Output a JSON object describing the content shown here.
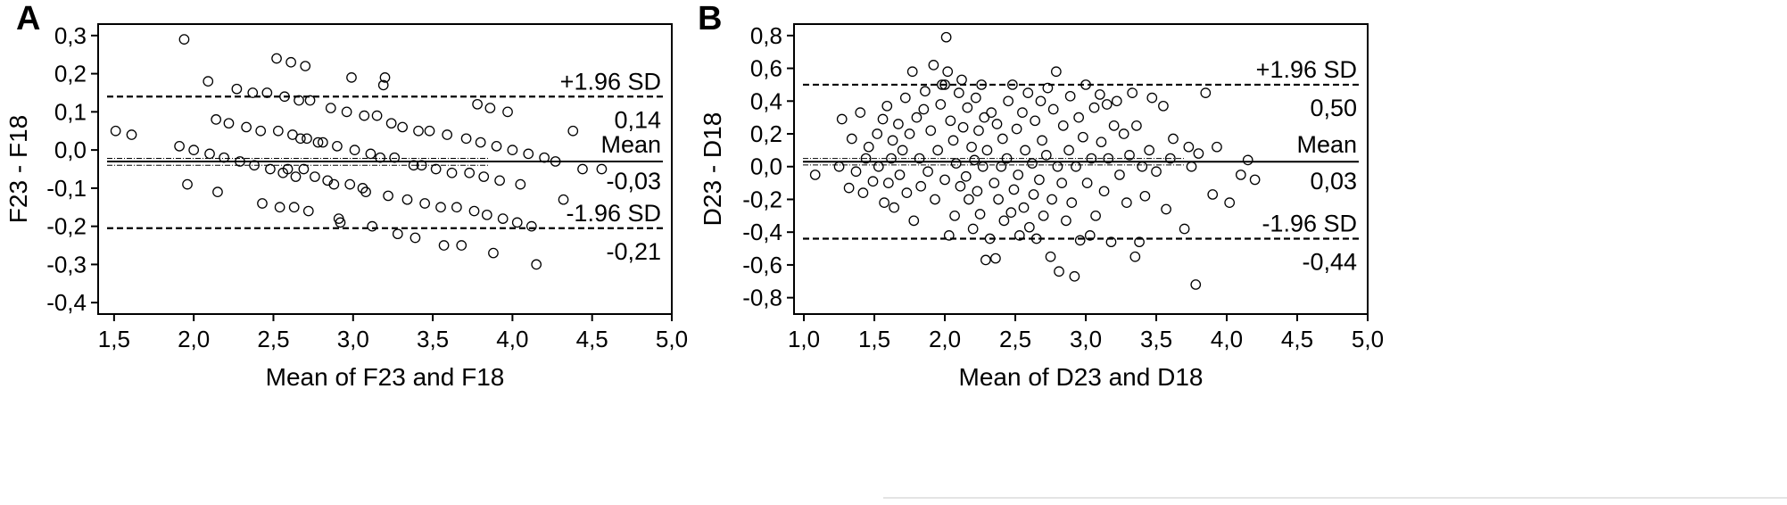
{
  "chart_data": [
    {
      "type": "scatter",
      "panel_label": "A",
      "title": "",
      "xlabel": "Mean of F23 and F18",
      "ylabel": "F23 - F18",
      "xlim": [
        1.4,
        5.0
      ],
      "ylim": [
        -0.43,
        0.33
      ],
      "x_ticks": [
        1.5,
        2.0,
        2.5,
        3.0,
        3.5,
        4.0,
        4.5,
        5.0
      ],
      "x_tick_labels": [
        "1,5",
        "2,0",
        "2,5",
        "3,0",
        "3,5",
        "4,0",
        "4,5",
        "5,0"
      ],
      "y_ticks": [
        0.3,
        0.2,
        0.1,
        0.0,
        -0.1,
        -0.2,
        -0.3,
        -0.4
      ],
      "y_tick_labels": [
        "0,3",
        "0,2",
        "0,1",
        "0,0",
        "-0,1",
        "-0,2",
        "-0,3",
        "-0,4"
      ],
      "grid": false,
      "reference_lines": {
        "upper": {
          "value": 0.14,
          "name": "+1.96 SD",
          "value_label": "0,14",
          "style": "dashed"
        },
        "mean": {
          "value": -0.03,
          "name": "Mean",
          "value_label": "-0,03",
          "style": "solid",
          "ci_low": -0.04,
          "ci_high": -0.022
        },
        "lower": {
          "value": -0.205,
          "name": "-1.96 SD",
          "value_label": "-0,21",
          "style": "dashed"
        }
      },
      "points": [
        [
          1.51,
          0.05
        ],
        [
          1.61,
          0.04
        ],
        [
          1.91,
          0.01
        ],
        [
          1.94,
          0.29
        ],
        [
          1.96,
          -0.09
        ],
        [
          2.0,
          0.0
        ],
        [
          2.09,
          0.18
        ],
        [
          2.1,
          -0.01
        ],
        [
          2.14,
          0.08
        ],
        [
          2.15,
          -0.11
        ],
        [
          2.19,
          -0.02
        ],
        [
          2.22,
          0.07
        ],
        [
          2.27,
          0.16
        ],
        [
          2.29,
          -0.03
        ],
        [
          2.33,
          0.06
        ],
        [
          2.37,
          0.15
        ],
        [
          2.38,
          -0.04
        ],
        [
          2.42,
          0.05
        ],
        [
          2.43,
          -0.14
        ],
        [
          2.46,
          0.15
        ],
        [
          2.48,
          -0.05
        ],
        [
          2.52,
          0.24
        ],
        [
          2.53,
          0.05
        ],
        [
          2.54,
          -0.15
        ],
        [
          2.56,
          -0.06
        ],
        [
          2.57,
          0.14
        ],
        [
          2.59,
          -0.05
        ],
        [
          2.61,
          0.23
        ],
        [
          2.62,
          0.04
        ],
        [
          2.63,
          -0.15
        ],
        [
          2.64,
          -0.07
        ],
        [
          2.66,
          0.13
        ],
        [
          2.67,
          0.03
        ],
        [
          2.69,
          -0.05
        ],
        [
          2.7,
          0.22
        ],
        [
          2.71,
          0.03
        ],
        [
          2.72,
          -0.16
        ],
        [
          2.73,
          0.13
        ],
        [
          2.76,
          -0.07
        ],
        [
          2.78,
          0.02
        ],
        [
          2.81,
          0.02
        ],
        [
          2.84,
          -0.08
        ],
        [
          2.86,
          0.11
        ],
        [
          2.88,
          -0.09
        ],
        [
          2.9,
          0.01
        ],
        [
          2.91,
          -0.18
        ],
        [
          2.92,
          -0.19
        ],
        [
          2.96,
          0.1
        ],
        [
          2.98,
          -0.09
        ],
        [
          2.99,
          0.19
        ],
        [
          3.01,
          0.0
        ],
        [
          3.06,
          -0.1
        ],
        [
          3.07,
          0.09
        ],
        [
          3.08,
          -0.11
        ],
        [
          3.11,
          -0.01
        ],
        [
          3.12,
          -0.2
        ],
        [
          3.15,
          0.09
        ],
        [
          3.17,
          -0.02
        ],
        [
          3.19,
          0.17
        ],
        [
          3.2,
          0.19
        ],
        [
          3.22,
          -0.12
        ],
        [
          3.24,
          0.07
        ],
        [
          3.26,
          -0.02
        ],
        [
          3.28,
          -0.22
        ],
        [
          3.31,
          0.06
        ],
        [
          3.34,
          -0.13
        ],
        [
          3.38,
          -0.04
        ],
        [
          3.39,
          -0.23
        ],
        [
          3.41,
          0.05
        ],
        [
          3.43,
          -0.04
        ],
        [
          3.45,
          -0.14
        ],
        [
          3.48,
          0.05
        ],
        [
          3.52,
          -0.05
        ],
        [
          3.55,
          -0.15
        ],
        [
          3.57,
          -0.25
        ],
        [
          3.59,
          0.04
        ],
        [
          3.62,
          -0.06
        ],
        [
          3.65,
          -0.15
        ],
        [
          3.68,
          -0.25
        ],
        [
          3.71,
          0.03
        ],
        [
          3.73,
          -0.06
        ],
        [
          3.76,
          -0.16
        ],
        [
          3.78,
          0.12
        ],
        [
          3.8,
          0.02
        ],
        [
          3.82,
          -0.07
        ],
        [
          3.84,
          -0.17
        ],
        [
          3.86,
          0.11
        ],
        [
          3.88,
          -0.27
        ],
        [
          3.9,
          0.01
        ],
        [
          3.92,
          -0.08
        ],
        [
          3.94,
          -0.18
        ],
        [
          3.97,
          0.1
        ],
        [
          4.0,
          0.0
        ],
        [
          4.03,
          -0.19
        ],
        [
          4.05,
          -0.09
        ],
        [
          4.1,
          -0.01
        ],
        [
          4.12,
          -0.2
        ],
        [
          4.15,
          -0.3
        ],
        [
          4.2,
          -0.02
        ],
        [
          4.27,
          -0.03
        ],
        [
          4.32,
          -0.13
        ],
        [
          4.38,
          0.05
        ],
        [
          4.44,
          -0.05
        ],
        [
          4.56,
          -0.05
        ]
      ]
    },
    {
      "type": "scatter",
      "panel_label": "B",
      "title": "",
      "xlabel": "Mean of D23 and D18",
      "ylabel": "D23 - D18",
      "xlim": [
        0.93,
        5.0
      ],
      "ylim": [
        -0.9,
        0.87
      ],
      "x_ticks": [
        1.0,
        1.5,
        2.0,
        2.5,
        3.0,
        3.5,
        4.0,
        4.5,
        5.0
      ],
      "x_tick_labels": [
        "1,0",
        "1,5",
        "2,0",
        "2,5",
        "3,0",
        "3,5",
        "4,0",
        "4,5",
        "5,0"
      ],
      "y_ticks": [
        0.8,
        0.6,
        0.4,
        0.2,
        0.0,
        -0.2,
        -0.4,
        -0.6,
        -0.8
      ],
      "y_tick_labels": [
        "0,8",
        "0,6",
        "0,4",
        "0,2",
        "0,0",
        "-0,2",
        "-0,4",
        "-0,6",
        "-0,8"
      ],
      "grid": false,
      "reference_lines": {
        "upper": {
          "value": 0.5,
          "name": "+1.96 SD",
          "value_label": "0,50",
          "style": "dashed"
        },
        "mean": {
          "value": 0.03,
          "name": "Mean",
          "value_label": "0,03",
          "style": "solid",
          "ci_low": 0.01,
          "ci_high": 0.05
        },
        "lower": {
          "value": -0.44,
          "name": "-1.96 SD",
          "value_label": "-0,44",
          "style": "dashed"
        }
      },
      "points": [
        [
          1.08,
          -0.05
        ],
        [
          1.25,
          0.0
        ],
        [
          1.27,
          0.29
        ],
        [
          1.32,
          -0.13
        ],
        [
          1.34,
          0.17
        ],
        [
          1.37,
          -0.03
        ],
        [
          1.4,
          0.33
        ],
        [
          1.42,
          -0.16
        ],
        [
          1.44,
          0.05
        ],
        [
          1.46,
          0.12
        ],
        [
          1.49,
          -0.09
        ],
        [
          1.52,
          0.2
        ],
        [
          1.53,
          0.0
        ],
        [
          1.56,
          0.29
        ],
        [
          1.57,
          -0.22
        ],
        [
          1.59,
          0.37
        ],
        [
          1.6,
          -0.1
        ],
        [
          1.62,
          0.05
        ],
        [
          1.63,
          0.16
        ],
        [
          1.64,
          -0.25
        ],
        [
          1.67,
          0.26
        ],
        [
          1.68,
          -0.05
        ],
        [
          1.7,
          0.1
        ],
        [
          1.72,
          0.42
        ],
        [
          1.73,
          -0.16
        ],
        [
          1.75,
          0.2
        ],
        [
          1.77,
          0.58
        ],
        [
          1.78,
          -0.33
        ],
        [
          1.8,
          0.3
        ],
        [
          1.82,
          0.05
        ],
        [
          1.83,
          -0.12
        ],
        [
          1.85,
          0.35
        ],
        [
          1.86,
          0.46
        ],
        [
          1.88,
          -0.03
        ],
        [
          1.9,
          0.22
        ],
        [
          1.92,
          0.62
        ],
        [
          1.93,
          -0.2
        ],
        [
          1.95,
          0.1
        ],
        [
          1.97,
          0.38
        ],
        [
          1.98,
          0.5
        ],
        [
          2.0,
          -0.08
        ],
        [
          2.01,
          0.79
        ],
        [
          2.02,
          0.58
        ],
        [
          2.03,
          -0.42
        ],
        [
          2.04,
          0.28
        ],
        [
          2.06,
          0.16
        ],
        [
          2.07,
          -0.3
        ],
        [
          2.08,
          0.02
        ],
        [
          2.1,
          0.45
        ],
        [
          2.11,
          -0.12
        ],
        [
          2.12,
          0.53
        ],
        [
          2.13,
          0.24
        ],
        [
          2.15,
          -0.06
        ],
        [
          2.16,
          0.36
        ],
        [
          2.17,
          -0.2
        ],
        [
          2.19,
          0.12
        ],
        [
          2.2,
          -0.38
        ],
        [
          2.21,
          0.04
        ],
        [
          2.22,
          0.42
        ],
        [
          2.23,
          -0.15
        ],
        [
          2.24,
          0.22
        ],
        [
          2.25,
          -0.29
        ],
        [
          2.26,
          0.5
        ],
        [
          2.27,
          0.0
        ],
        [
          2.28,
          0.3
        ],
        [
          2.29,
          -0.57
        ],
        [
          2.3,
          0.1
        ],
        [
          2.32,
          -0.44
        ],
        [
          2.33,
          0.33
        ],
        [
          2.35,
          -0.1
        ],
        [
          2.36,
          -0.56
        ],
        [
          2.37,
          0.26
        ],
        [
          2.38,
          -0.2
        ],
        [
          2.4,
          0.0
        ],
        [
          2.41,
          0.17
        ],
        [
          2.42,
          -0.33
        ],
        [
          2.44,
          0.05
        ],
        [
          2.45,
          0.4
        ],
        [
          2.47,
          -0.28
        ],
        [
          2.48,
          0.5
        ],
        [
          2.49,
          -0.14
        ],
        [
          2.51,
          0.23
        ],
        [
          2.52,
          -0.05
        ],
        [
          2.53,
          -0.42
        ],
        [
          2.55,
          0.33
        ],
        [
          2.56,
          -0.25
        ],
        [
          2.57,
          0.1
        ],
        [
          2.59,
          0.45
        ],
        [
          2.6,
          -0.37
        ],
        [
          2.62,
          0.02
        ],
        [
          2.63,
          -0.17
        ],
        [
          2.64,
          0.28
        ],
        [
          2.65,
          -0.44
        ],
        [
          2.67,
          -0.08
        ],
        [
          2.68,
          0.4
        ],
        [
          2.69,
          0.16
        ],
        [
          2.7,
          -0.3
        ],
        [
          2.72,
          0.07
        ],
        [
          2.73,
          0.48
        ],
        [
          2.75,
          -0.55
        ],
        [
          2.76,
          -0.2
        ],
        [
          2.77,
          0.35
        ],
        [
          2.79,
          0.58
        ],
        [
          2.8,
          0.0
        ],
        [
          2.81,
          -0.64
        ],
        [
          2.83,
          -0.1
        ],
        [
          2.84,
          0.25
        ],
        [
          2.86,
          -0.33
        ],
        [
          2.88,
          0.1
        ],
        [
          2.89,
          0.43
        ],
        [
          2.9,
          -0.22
        ],
        [
          2.92,
          -0.67
        ],
        [
          2.93,
          0.0
        ],
        [
          2.95,
          0.3
        ],
        [
          2.96,
          -0.45
        ],
        [
          2.98,
          0.18
        ],
        [
          3.0,
          0.5
        ],
        [
          3.01,
          -0.1
        ],
        [
          3.03,
          -0.42
        ],
        [
          3.04,
          0.05
        ],
        [
          3.06,
          0.36
        ],
        [
          3.07,
          -0.3
        ],
        [
          3.1,
          0.44
        ],
        [
          3.11,
          0.15
        ],
        [
          3.13,
          -0.15
        ],
        [
          3.15,
          0.38
        ],
        [
          3.16,
          0.05
        ],
        [
          3.18,
          -0.46
        ],
        [
          3.2,
          0.25
        ],
        [
          3.22,
          0.4
        ],
        [
          3.24,
          -0.05
        ],
        [
          3.27,
          0.2
        ],
        [
          3.29,
          -0.22
        ],
        [
          3.31,
          0.07
        ],
        [
          3.33,
          0.45
        ],
        [
          3.35,
          -0.55
        ],
        [
          3.36,
          0.25
        ],
        [
          3.38,
          -0.46
        ],
        [
          3.4,
          0.0
        ],
        [
          3.42,
          -0.18
        ],
        [
          3.45,
          0.1
        ],
        [
          3.47,
          0.42
        ],
        [
          3.5,
          -0.03
        ],
        [
          3.55,
          0.37
        ],
        [
          3.57,
          -0.26
        ],
        [
          3.6,
          0.05
        ],
        [
          3.62,
          0.17
        ],
        [
          3.7,
          -0.38
        ],
        [
          3.73,
          0.12
        ],
        [
          3.78,
          -0.72
        ],
        [
          3.8,
          0.08
        ],
        [
          3.85,
          0.45
        ],
        [
          3.9,
          -0.17
        ],
        [
          3.93,
          0.12
        ],
        [
          4.02,
          -0.22
        ],
        [
          4.1,
          -0.05
        ],
        [
          4.15,
          0.04
        ],
        [
          4.2,
          -0.08
        ],
        [
          3.75,
          0.0
        ],
        [
          2.0,
          0.5
        ]
      ]
    }
  ]
}
